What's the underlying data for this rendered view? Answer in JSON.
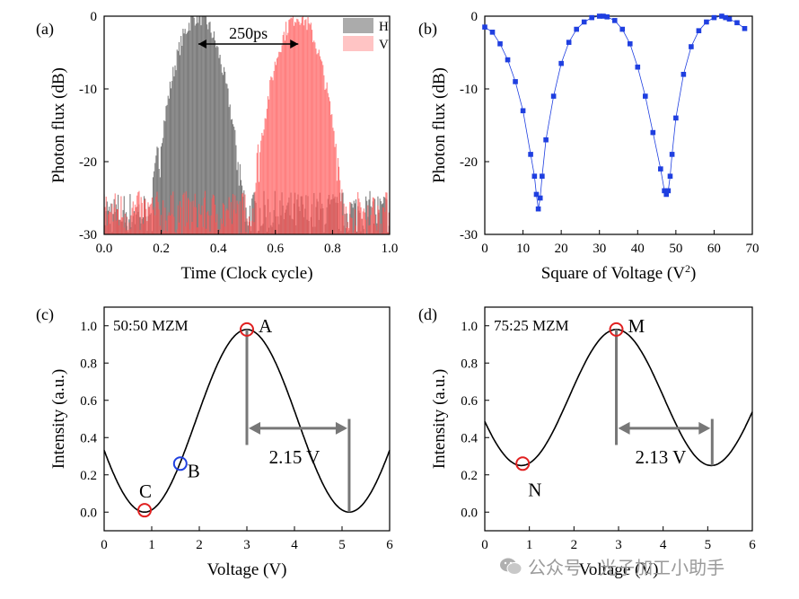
{
  "watermark": "公众号 · 光子加工小助手",
  "chart_data": [
    {
      "id": "a",
      "panel_label": "(a)",
      "type": "histogram",
      "xlabel": "Time (Clock cycle)",
      "ylabel": "Photon flux (dB)",
      "xlim": [
        0,
        1.0
      ],
      "ylim": [
        -30,
        0
      ],
      "xticks": [
        0.0,
        0.2,
        0.4,
        0.6,
        0.8,
        1.0
      ],
      "yticks": [
        0,
        -10,
        -20,
        -30
      ],
      "annotation": "250ps",
      "legend": {
        "position": "top-right",
        "entries": [
          "H",
          "V"
        ]
      },
      "colors": {
        "H": "#666666",
        "V": "#ff5555"
      },
      "series": [
        {
          "name": "H",
          "peak_x": 0.33,
          "peak_db": 0
        },
        {
          "name": "V",
          "peak_x": 0.68,
          "peak_db": 0
        }
      ]
    },
    {
      "id": "b",
      "panel_label": "(b)",
      "type": "scatter",
      "xlabel": "Square of Voltage (V",
      "xlabel_sup": "2",
      "xlabel_end": ")",
      "ylabel": "Photon flux (dB)",
      "xlim": [
        0,
        70
      ],
      "ylim": [
        -30,
        0
      ],
      "xticks": [
        0,
        10,
        20,
        30,
        40,
        50,
        60,
        70
      ],
      "yticks": [
        0,
        -10,
        -20,
        -30
      ],
      "color": "#1f3fe0",
      "x": [
        0,
        2,
        4,
        6,
        8,
        10,
        12,
        13,
        13.5,
        14,
        14.5,
        15,
        16,
        18,
        20,
        22,
        24,
        26,
        28,
        30,
        31,
        32,
        34,
        36,
        38,
        40,
        42,
        44,
        46,
        47,
        47.5,
        48,
        48.5,
        49,
        50,
        52,
        54,
        56,
        58,
        60,
        62,
        63,
        64,
        66,
        68
      ],
      "y": [
        -1.5,
        -2.2,
        -3.8,
        -6,
        -9,
        -13,
        -19,
        -22,
        -24.5,
        -26.5,
        -25,
        -22,
        -17,
        -11,
        -6.5,
        -3.6,
        -1.8,
        -0.8,
        -0.2,
        0,
        0,
        -0.1,
        -0.6,
        -1.8,
        -3.8,
        -7,
        -11,
        -16,
        -21,
        -24,
        -24.5,
        -24,
        -22,
        -19,
        -14,
        -8,
        -4.2,
        -2,
        -0.8,
        -0.2,
        0,
        -0.2,
        -0.4,
        -0.9,
        -1.7
      ]
    },
    {
      "id": "c",
      "panel_label": "(c)",
      "type": "line",
      "title": "50:50 MZM",
      "xlabel": "Voltage (V)",
      "ylabel": "Intensity (a.u.)",
      "xlim": [
        0,
        6
      ],
      "ylim": [
        -0.1,
        1.1
      ],
      "xticks": [
        0,
        1,
        2,
        3,
        4,
        5,
        6
      ],
      "yticks": [
        0.0,
        0.2,
        0.4,
        0.6,
        0.8,
        1.0
      ],
      "curve": {
        "period_half": 2.15,
        "peak_x": 3.0,
        "max": 0.98,
        "min": 0.0
      },
      "points": [
        {
          "label": "A",
          "x": 3.0,
          "y": 0.98,
          "color": "#e02020"
        },
        {
          "label": "B",
          "x": 1.6,
          "y": 0.26,
          "color": "#2040e0"
        },
        {
          "label": "C",
          "x": 0.85,
          "y": 0.01,
          "color": "#e02020"
        }
      ],
      "span": {
        "label": "2.15 V",
        "x1": 3.0,
        "x2": 5.15
      }
    },
    {
      "id": "d",
      "panel_label": "(d)",
      "type": "line",
      "title": "75:25 MZM",
      "xlabel": "Voltage (V)",
      "ylabel": "Intensity (a.u.)",
      "xlim": [
        0,
        6
      ],
      "ylim": [
        -0.1,
        1.1
      ],
      "xticks": [
        0,
        1,
        2,
        3,
        4,
        5,
        6
      ],
      "yticks": [
        0.0,
        0.2,
        0.4,
        0.6,
        0.8,
        1.0
      ],
      "curve": {
        "period_half": 2.13,
        "peak_x": 2.95,
        "max": 0.98,
        "min": 0.25
      },
      "points": [
        {
          "label": "M",
          "x": 2.95,
          "y": 0.98,
          "color": "#e02020"
        },
        {
          "label": "N",
          "x": 0.85,
          "y": 0.26,
          "color": "#e02020"
        }
      ],
      "span": {
        "label": "2.13 V",
        "x1": 2.95,
        "x2": 5.1
      }
    }
  ]
}
